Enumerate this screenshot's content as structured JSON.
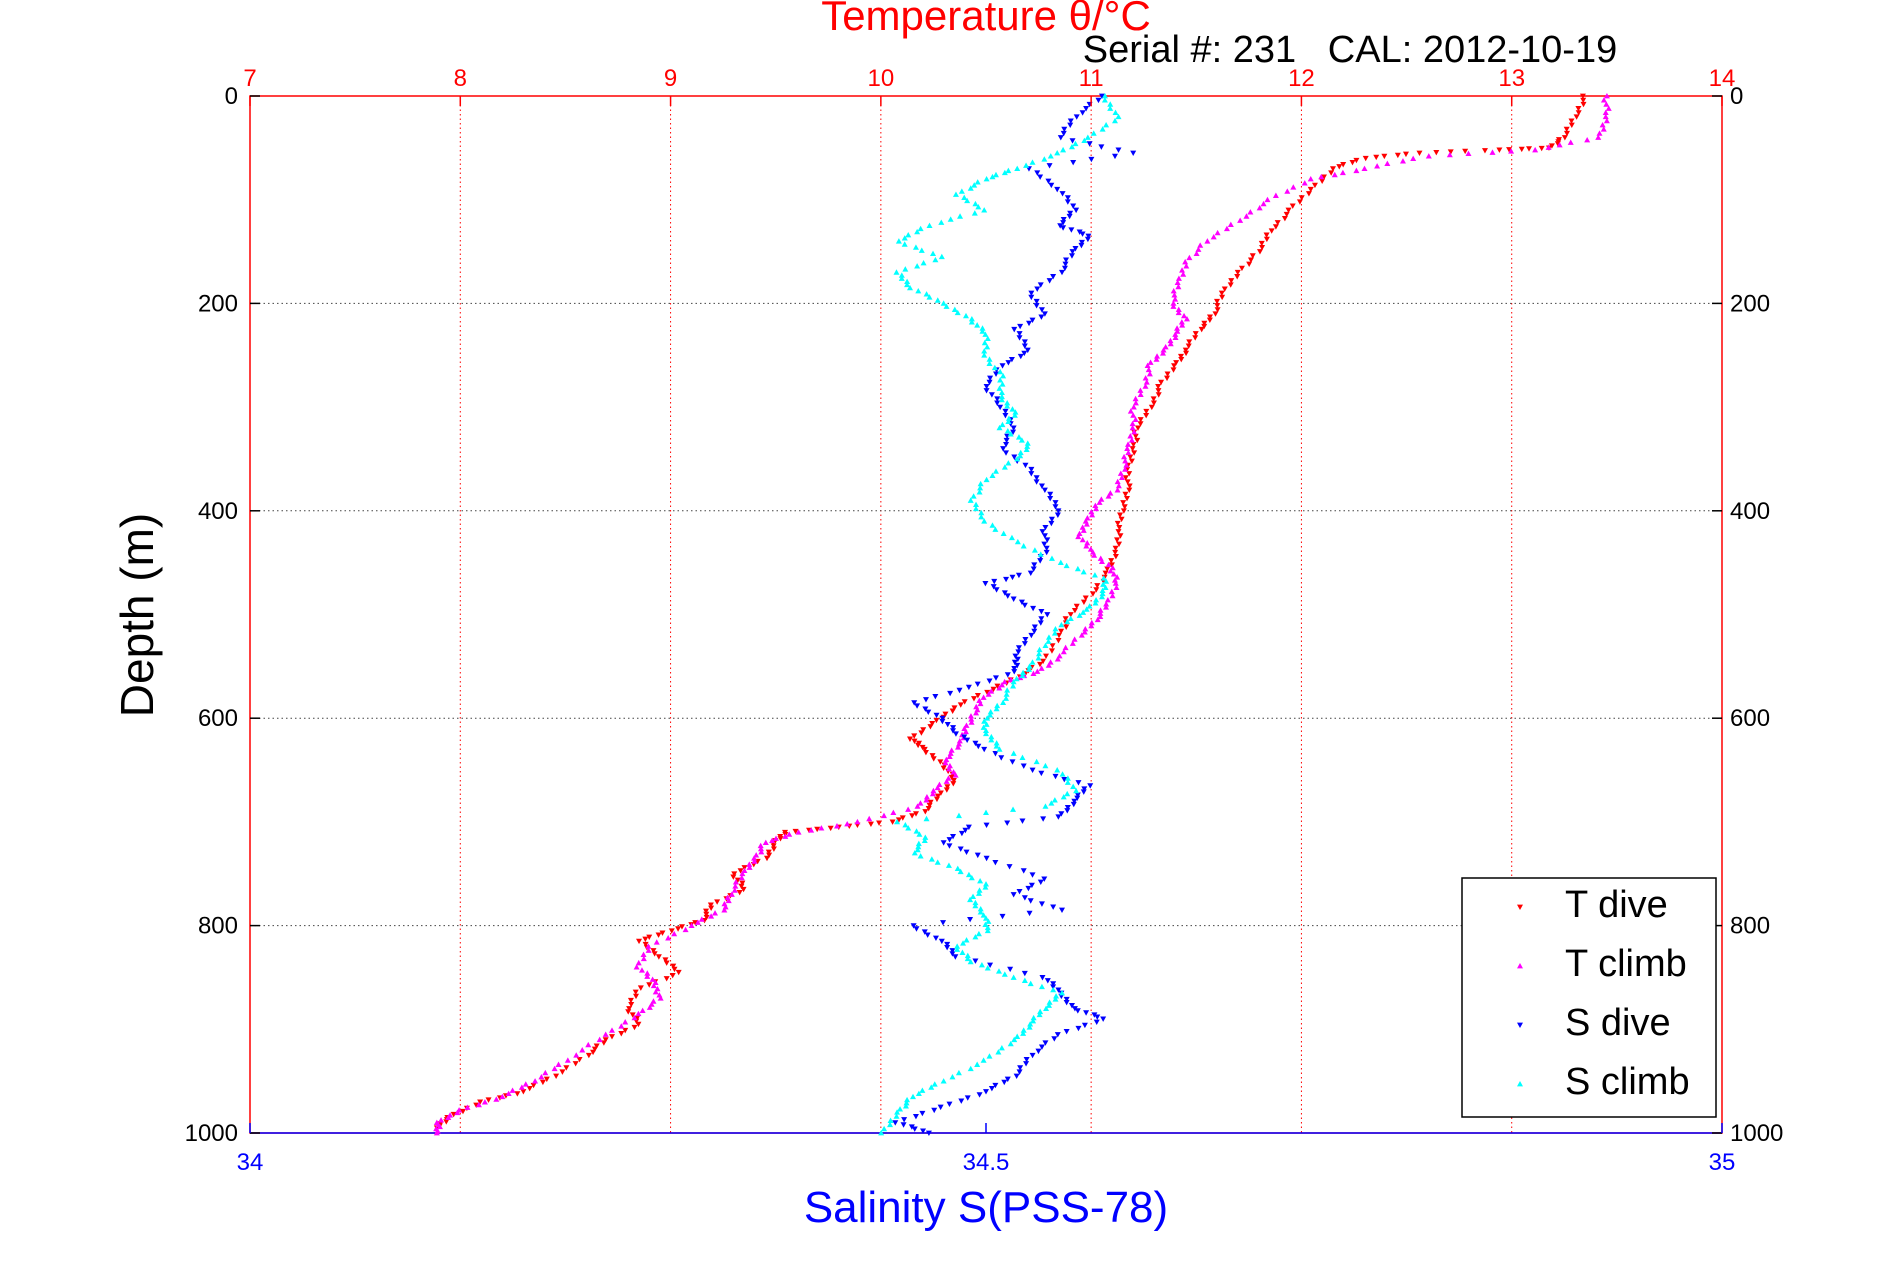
{
  "chart_data": {
    "type": "scatter",
    "title": "Temperature θ/°C",
    "subtitle": "Serial #: 231   CAL: 2012-10-19",
    "ylabel": "Depth (m)",
    "xlabel": "Salinity S(PSS-78)",
    "top_axis": {
      "label": "Temperature θ/°C",
      "lim": [
        7,
        14
      ],
      "ticks": [
        "7",
        "8",
        "9",
        "10",
        "11",
        "12",
        "13",
        "14"
      ],
      "color": "#ff0000",
      "grid": "dotted"
    },
    "bottom_axis": {
      "label": "Salinity S(PSS-78)",
      "lim": [
        34,
        35
      ],
      "ticks": [
        "34",
        "34.5",
        "35"
      ],
      "color": "#0000ff"
    },
    "y_axis": {
      "lim": [
        0,
        1000
      ],
      "reversed": true,
      "ticks": [
        "0",
        "200",
        "400",
        "600",
        "800",
        "1000"
      ],
      "grid": "dotted"
    },
    "legend": {
      "position": "bottom-right",
      "entries": [
        "T dive",
        "T climb",
        "S dive",
        "S climb"
      ]
    },
    "series": [
      {
        "name": "T dive",
        "axis": "temperature",
        "color": "#ff0000",
        "marker": "triangle-down",
        "points": [
          [
            13.35,
            0
          ],
          [
            13.3,
            20
          ],
          [
            13.25,
            40
          ],
          [
            13.18,
            50
          ],
          [
            12.95,
            52
          ],
          [
            12.55,
            55
          ],
          [
            12.3,
            60
          ],
          [
            12.15,
            70
          ],
          [
            12.05,
            90
          ],
          [
            11.95,
            110
          ],
          [
            11.85,
            130
          ],
          [
            11.8,
            150
          ],
          [
            11.7,
            170
          ],
          [
            11.63,
            190
          ],
          [
            11.58,
            210
          ],
          [
            11.52,
            225
          ],
          [
            11.45,
            245
          ],
          [
            11.4,
            260
          ],
          [
            11.33,
            280
          ],
          [
            11.28,
            300
          ],
          [
            11.22,
            320
          ],
          [
            11.2,
            340
          ],
          [
            11.18,
            360
          ],
          [
            11.17,
            380
          ],
          [
            11.15,
            400
          ],
          [
            11.13,
            420
          ],
          [
            11.12,
            440
          ],
          [
            11.08,
            460
          ],
          [
            11.0,
            480
          ],
          [
            10.9,
            500
          ],
          [
            10.85,
            520
          ],
          [
            10.78,
            545
          ],
          [
            10.65,
            560
          ],
          [
            10.5,
            575
          ],
          [
            10.35,
            590
          ],
          [
            10.25,
            605
          ],
          [
            10.15,
            620
          ],
          [
            10.2,
            630
          ],
          [
            10.3,
            645
          ],
          [
            10.35,
            660
          ],
          [
            10.28,
            675
          ],
          [
            10.2,
            690
          ],
          [
            10.05,
            700
          ],
          [
            9.8,
            705
          ],
          [
            9.55,
            710
          ],
          [
            9.5,
            720
          ],
          [
            9.45,
            735
          ],
          [
            9.3,
            750
          ],
          [
            9.35,
            765
          ],
          [
            9.2,
            780
          ],
          [
            9.15,
            795
          ],
          [
            9.0,
            805
          ],
          [
            8.85,
            815
          ],
          [
            8.95,
            830
          ],
          [
            9.05,
            845
          ],
          [
            8.85,
            860
          ],
          [
            8.8,
            880
          ],
          [
            8.85,
            895
          ],
          [
            8.7,
            910
          ],
          [
            8.6,
            925
          ],
          [
            8.45,
            945
          ],
          [
            8.3,
            960
          ],
          [
            8.1,
            970
          ],
          [
            7.95,
            985
          ],
          [
            7.88,
            995
          ]
        ]
      },
      {
        "name": "T climb",
        "axis": "temperature",
        "color": "#ff00ff",
        "marker": "triangle-up",
        "points": [
          [
            13.45,
            0
          ],
          [
            13.45,
            20
          ],
          [
            13.42,
            40
          ],
          [
            13.1,
            52
          ],
          [
            12.6,
            58
          ],
          [
            12.3,
            70
          ],
          [
            12.05,
            80
          ],
          [
            11.85,
            100
          ],
          [
            11.7,
            120
          ],
          [
            11.55,
            140
          ],
          [
            11.45,
            160
          ],
          [
            11.42,
            180
          ],
          [
            11.38,
            200
          ],
          [
            11.45,
            215
          ],
          [
            11.4,
            230
          ],
          [
            11.35,
            245
          ],
          [
            11.28,
            260
          ],
          [
            11.25,
            280
          ],
          [
            11.2,
            300
          ],
          [
            11.2,
            320
          ],
          [
            11.18,
            340
          ],
          [
            11.15,
            360
          ],
          [
            11.12,
            380
          ],
          [
            11.02,
            395
          ],
          [
            10.98,
            410
          ],
          [
            10.95,
            425
          ],
          [
            11.0,
            440
          ],
          [
            11.1,
            455
          ],
          [
            11.12,
            470
          ],
          [
            11.08,
            490
          ],
          [
            11.02,
            505
          ],
          [
            10.95,
            520
          ],
          [
            10.85,
            540
          ],
          [
            10.75,
            555
          ],
          [
            10.6,
            565
          ],
          [
            10.48,
            580
          ],
          [
            10.45,
            595
          ],
          [
            10.4,
            610
          ],
          [
            10.38,
            625
          ],
          [
            10.3,
            640
          ],
          [
            10.35,
            655
          ],
          [
            10.25,
            670
          ],
          [
            10.18,
            685
          ],
          [
            9.9,
            700
          ],
          [
            9.6,
            710
          ],
          [
            9.45,
            720
          ],
          [
            9.4,
            735
          ],
          [
            9.35,
            750
          ],
          [
            9.28,
            770
          ],
          [
            9.25,
            785
          ],
          [
            9.1,
            800
          ],
          [
            8.9,
            820
          ],
          [
            8.85,
            840
          ],
          [
            8.92,
            855
          ],
          [
            8.95,
            870
          ],
          [
            8.85,
            885
          ],
          [
            8.7,
            905
          ],
          [
            8.5,
            930
          ],
          [
            8.35,
            950
          ],
          [
            8.2,
            965
          ],
          [
            8.0,
            978
          ],
          [
            7.9,
            990
          ],
          [
            7.88,
            1000
          ]
        ]
      },
      {
        "name": "S dive",
        "axis": "salinity",
        "color": "#0000ff",
        "marker": "triangle-down",
        "points": [
          [
            34.58,
            0
          ],
          [
            34.56,
            20
          ],
          [
            34.55,
            40
          ],
          [
            34.6,
            55
          ],
          [
            34.53,
            70
          ],
          [
            34.55,
            90
          ],
          [
            34.56,
            110
          ],
          [
            34.55,
            125
          ],
          [
            34.57,
            135
          ],
          [
            34.56,
            150
          ],
          [
            34.55,
            170
          ],
          [
            34.53,
            190
          ],
          [
            34.54,
            210
          ],
          [
            34.52,
            225
          ],
          [
            34.53,
            245
          ],
          [
            34.51,
            260
          ],
          [
            34.5,
            280
          ],
          [
            34.51,
            300
          ],
          [
            34.52,
            320
          ],
          [
            34.51,
            340
          ],
          [
            34.53,
            360
          ],
          [
            34.54,
            380
          ],
          [
            34.55,
            400
          ],
          [
            34.54,
            420
          ],
          [
            34.54,
            440
          ],
          [
            34.53,
            460
          ],
          [
            34.5,
            470
          ],
          [
            34.52,
            485
          ],
          [
            34.54,
            500
          ],
          [
            34.53,
            520
          ],
          [
            34.52,
            540
          ],
          [
            34.52,
            555
          ],
          [
            34.49,
            570
          ],
          [
            34.45,
            585
          ],
          [
            34.47,
            600
          ],
          [
            34.48,
            615
          ],
          [
            34.5,
            630
          ],
          [
            34.53,
            650
          ],
          [
            34.57,
            665
          ],
          [
            34.56,
            680
          ],
          [
            34.55,
            695
          ],
          [
            34.49,
            705
          ],
          [
            34.47,
            720
          ],
          [
            34.5,
            735
          ],
          [
            34.54,
            755
          ],
          [
            34.52,
            770
          ],
          [
            34.55,
            785
          ],
          [
            34.45,
            800
          ],
          [
            34.47,
            815
          ],
          [
            34.48,
            830
          ],
          [
            34.54,
            850
          ],
          [
            34.55,
            865
          ],
          [
            34.56,
            880
          ],
          [
            34.58,
            890
          ],
          [
            34.55,
            905
          ],
          [
            34.53,
            925
          ],
          [
            34.52,
            945
          ],
          [
            34.5,
            960
          ],
          [
            34.47,
            975
          ],
          [
            34.44,
            990
          ],
          [
            34.46,
            1000
          ]
        ]
      },
      {
        "name": "S climb",
        "axis": "salinity",
        "color": "#00ffff",
        "marker": "triangle-up",
        "points": [
          [
            34.58,
            0
          ],
          [
            34.59,
            20
          ],
          [
            34.57,
            40
          ],
          [
            34.55,
            55
          ],
          [
            34.52,
            70
          ],
          [
            34.5,
            80
          ],
          [
            34.48,
            95
          ],
          [
            34.5,
            110
          ],
          [
            34.46,
            125
          ],
          [
            34.44,
            140
          ],
          [
            34.47,
            155
          ],
          [
            34.44,
            170
          ],
          [
            34.45,
            185
          ],
          [
            34.47,
            200
          ],
          [
            34.49,
            215
          ],
          [
            34.5,
            230
          ],
          [
            34.5,
            250
          ],
          [
            34.51,
            270
          ],
          [
            34.51,
            290
          ],
          [
            34.52,
            305
          ],
          [
            34.51,
            320
          ],
          [
            34.53,
            335
          ],
          [
            34.52,
            350
          ],
          [
            34.5,
            370
          ],
          [
            34.49,
            390
          ],
          [
            34.5,
            410
          ],
          [
            34.52,
            430
          ],
          [
            34.55,
            450
          ],
          [
            34.58,
            465
          ],
          [
            34.58,
            480
          ],
          [
            34.57,
            495
          ],
          [
            34.55,
            510
          ],
          [
            34.54,
            530
          ],
          [
            34.53,
            550
          ],
          [
            34.52,
            565
          ],
          [
            34.51,
            585
          ],
          [
            34.5,
            600
          ],
          [
            34.5,
            615
          ],
          [
            34.51,
            630
          ],
          [
            34.55,
            650
          ],
          [
            34.56,
            670
          ],
          [
            34.54,
            685
          ],
          [
            34.44,
            700
          ],
          [
            34.46,
            715
          ],
          [
            34.45,
            730
          ],
          [
            34.48,
            745
          ],
          [
            34.5,
            760
          ],
          [
            34.49,
            775
          ],
          [
            34.5,
            790
          ],
          [
            34.5,
            805
          ],
          [
            34.48,
            820
          ],
          [
            34.49,
            835
          ],
          [
            34.52,
            850
          ],
          [
            34.55,
            865
          ],
          [
            34.54,
            880
          ],
          [
            34.53,
            895
          ],
          [
            34.52,
            910
          ],
          [
            34.5,
            930
          ],
          [
            34.47,
            950
          ],
          [
            34.45,
            965
          ],
          [
            34.44,
            980
          ],
          [
            34.43,
            1000
          ]
        ]
      }
    ]
  }
}
